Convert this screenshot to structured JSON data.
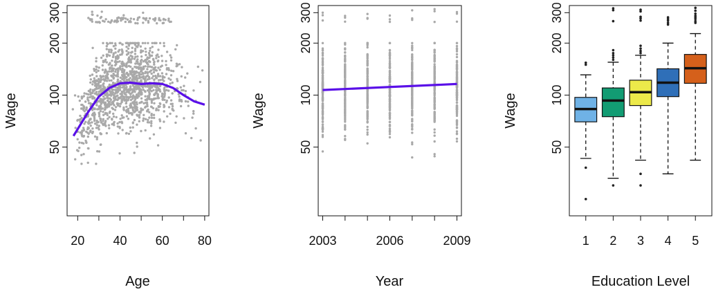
{
  "colors": {
    "points": "#a9a9a9",
    "fit_line": "#5a10e8",
    "box_colors": [
      "#6fb2e6",
      "#129c73",
      "#ece94a",
      "#2f6fb8",
      "#d5601b"
    ]
  },
  "chart_data": [
    {
      "type": "scatter",
      "xlabel": "Age",
      "ylabel": "Wage",
      "xlim": [
        15,
        82
      ],
      "ylim": [
        20,
        330
      ],
      "xticks": [
        20,
        40,
        60,
        80
      ],
      "xtick_labels": [
        "20",
        "40",
        "60",
        "80"
      ],
      "yticks": [
        50,
        100,
        200,
        300
      ],
      "ytick_labels": [
        "50",
        "100",
        "200",
        "300"
      ],
      "points_x_range": [
        18,
        80
      ],
      "points_main_band": [
        40,
        200
      ],
      "points_high_band": [
        260,
        320
      ],
      "fit_line": {
        "x": [
          18,
          25,
          30,
          35,
          40,
          45,
          50,
          55,
          60,
          65,
          70,
          75,
          80
        ],
        "y": [
          58,
          80,
          98,
          110,
          117,
          118,
          116,
          117,
          116,
          110,
          100,
          92,
          88
        ]
      },
      "grid": false
    },
    {
      "type": "scatter",
      "xlabel": "Year",
      "ylabel": "Wage",
      "xlim": [
        2002.8,
        2009.2
      ],
      "ylim": [
        20,
        330
      ],
      "xticks": [
        2003,
        2004,
        2005,
        2006,
        2007,
        2008,
        2009
      ],
      "xtick_labels": [
        "2003",
        "",
        "",
        "2006",
        "",
        "",
        "2009"
      ],
      "yticks": [
        50,
        100,
        200,
        300
      ],
      "ytick_labels": [
        "50",
        "100",
        "200",
        "300"
      ],
      "points_main_band": [
        40,
        200
      ],
      "fit_line": {
        "x": [
          2003,
          2009
        ],
        "y": [
          107,
          116
        ]
      },
      "grid": false
    },
    {
      "type": "box",
      "xlabel": "Education Level",
      "ylabel": "Wage",
      "categories": [
        "1",
        "2",
        "3",
        "4",
        "5"
      ],
      "ylim": [
        20,
        330
      ],
      "yticks": [
        50,
        100,
        200,
        300
      ],
      "ytick_labels": [
        "50",
        "100",
        "200",
        "300"
      ],
      "boxes": [
        {
          "min": 43,
          "q1": 70,
          "median": 83,
          "q3": 97,
          "max": 131,
          "outliers": [
            150,
            154,
            38,
            25
          ]
        },
        {
          "min": 33,
          "q1": 75,
          "median": 93,
          "q3": 110,
          "max": 155,
          "outliers": [
            160,
            165,
            170,
            175,
            182,
            268,
            310,
            318,
            30
          ]
        },
        {
          "min": 42,
          "q1": 87,
          "median": 104,
          "q3": 122,
          "max": 170,
          "outliers": [
            175,
            180,
            186,
            193,
            270,
            278,
            284,
            305,
            312,
            30,
            35
          ]
        },
        {
          "min": 35,
          "q1": 98,
          "median": 118,
          "q3": 142,
          "max": 200,
          "outliers": [
            256,
            262,
            270,
            276,
            282
          ]
        },
        {
          "min": 42,
          "q1": 117,
          "median": 143,
          "q3": 172,
          "max": 227,
          "outliers": [
            262,
            268,
            276,
            282,
            288,
            296,
            308,
            320
          ]
        }
      ],
      "grid": false
    }
  ]
}
